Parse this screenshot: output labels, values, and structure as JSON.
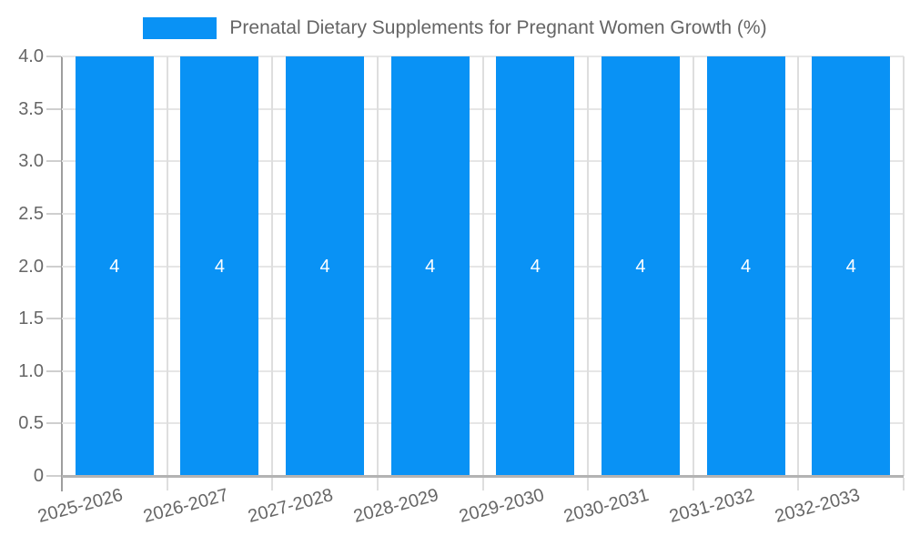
{
  "legend": {
    "swatch_color": "#0992f5"
  },
  "chart_data": {
    "type": "bar",
    "title": "Prenatal Dietary Supplements for Pregnant Women Growth (%)",
    "categories": [
      "2025-2026",
      "2026-2027",
      "2027-2028",
      "2028-2029",
      "2029-2030",
      "2030-2031",
      "2031-2032",
      "2032-2033"
    ],
    "values": [
      4,
      4,
      4,
      4,
      4,
      4,
      4,
      4
    ],
    "value_labels": [
      "4",
      "4",
      "4",
      "4",
      "4",
      "4",
      "4",
      "4"
    ],
    "xlabel": "",
    "ylabel": "",
    "ylim": [
      0,
      4
    ],
    "y_tick_labels": [
      "0",
      "0.5",
      "1.0",
      "1.5",
      "2.0",
      "2.5",
      "3.0",
      "3.5",
      "4.0"
    ],
    "grid": true,
    "legend_position": "top",
    "bar_color": "#0992f5",
    "value_label_color": "#ffffff",
    "tick_label_color": "#666666",
    "title_color": "#656565",
    "h_grid_color": "#e6e6e6",
    "v_grid_color": "#dedede",
    "y_axis_line_color": "#9e9e9e",
    "x_axis_line_color": "#b3b3b3"
  }
}
